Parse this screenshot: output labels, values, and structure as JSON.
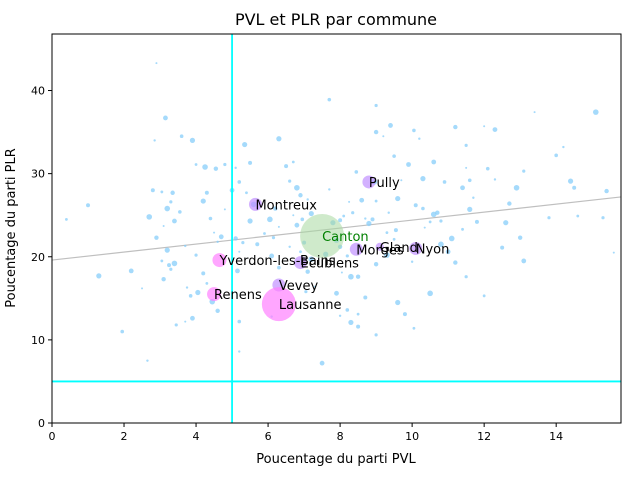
{
  "chart_data": {
    "type": "scatter",
    "title": "PVL et PLR par commune",
    "xlabel": "Poucentage du parti PVL",
    "ylabel": "Poucentage du parti PLR",
    "xlim": [
      0,
      15.8
    ],
    "ylim": [
      0,
      46.8
    ],
    "xticks": [
      0,
      2,
      4,
      6,
      8,
      10,
      12,
      14
    ],
    "yticks": [
      0,
      10,
      20,
      30,
      40
    ],
    "grid": false,
    "regression_line": {
      "x": [
        0,
        15.8
      ],
      "y": [
        19.6,
        27.2
      ],
      "color": "#bfbfbf"
    },
    "threshold_lines": {
      "x": 5,
      "y": 5,
      "color": "#00ffff"
    },
    "colors": {
      "small": "#87cefa",
      "medium": "#c090ff",
      "large": "#ff80ff",
      "canton": "#a8d8a0"
    },
    "labeled_points": [
      {
        "label": "Pully",
        "x": 8.8,
        "y": 29.0,
        "size": "medium"
      },
      {
        "label": "Montreux",
        "x": 5.65,
        "y": 26.3,
        "size": "medium"
      },
      {
        "label": "Canton",
        "x": 7.5,
        "y": 22.5,
        "size": "canton",
        "label_color": "#008000"
      },
      {
        "label": "Morges",
        "x": 8.45,
        "y": 20.9,
        "size": "medium"
      },
      {
        "label": "Gland",
        "x": 9.1,
        "y": 21.2,
        "size": "small"
      },
      {
        "label": "Nyon",
        "x": 10.1,
        "y": 21.0,
        "size": "medium"
      },
      {
        "label": "Yverdon-les-Bains",
        "x": 4.65,
        "y": 19.6,
        "size": "large"
      },
      {
        "label": "Ecublens",
        "x": 6.9,
        "y": 19.3,
        "size": "medium"
      },
      {
        "label": "Vevey",
        "x": 6.3,
        "y": 16.6,
        "size": "medium"
      },
      {
        "label": "Renens",
        "x": 4.5,
        "y": 15.5,
        "size": "large"
      },
      {
        "label": "Lausanne",
        "x": 6.3,
        "y": 14.3,
        "size": "large"
      }
    ],
    "points": [
      [
        2.9,
        43.3
      ],
      [
        3.15,
        36.7
      ],
      [
        3.6,
        34.5
      ],
      [
        2.85,
        34.0
      ],
      [
        3.9,
        34.0
      ],
      [
        2.8,
        28.0
      ],
      [
        3.05,
        27.8
      ],
      [
        3.2,
        25.8
      ],
      [
        3.35,
        27.7
      ],
      [
        3.3,
        26.6
      ],
      [
        3.1,
        23.7
      ],
      [
        3.4,
        24.3
      ],
      [
        3.55,
        25.4
      ],
      [
        3.7,
        21.3
      ],
      [
        3.2,
        20.8
      ],
      [
        3.25,
        19.0
      ],
      [
        3.05,
        19.5
      ],
      [
        3.4,
        19.2
      ],
      [
        3.1,
        17.3
      ],
      [
        3.3,
        18.5
      ],
      [
        2.5,
        16.2
      ],
      [
        2.2,
        18.3
      ],
      [
        1.95,
        11.0
      ],
      [
        2.65,
        7.5
      ],
      [
        1.3,
        17.7
      ],
      [
        1.0,
        26.2
      ],
      [
        0.4,
        24.5
      ],
      [
        2.7,
        24.8
      ],
      [
        2.9,
        22.3
      ],
      [
        3.45,
        11.8
      ],
      [
        3.7,
        12.2
      ],
      [
        3.9,
        12.6
      ],
      [
        3.85,
        15.3
      ],
      [
        3.75,
        16.3
      ],
      [
        4.05,
        15.7
      ],
      [
        4.2,
        18.0
      ],
      [
        4.3,
        16.8
      ],
      [
        4.45,
        14.6
      ],
      [
        4.6,
        13.5
      ],
      [
        4.0,
        20.2
      ],
      [
        4.5,
        22.9
      ],
      [
        4.7,
        22.4
      ],
      [
        4.4,
        24.6
      ],
      [
        4.6,
        21.8
      ],
      [
        4.2,
        26.7
      ],
      [
        4.3,
        27.7
      ],
      [
        4.0,
        31.1
      ],
      [
        4.25,
        30.8
      ],
      [
        4.55,
        30.6
      ],
      [
        4.8,
        31.1
      ],
      [
        4.8,
        25.7
      ],
      [
        5.0,
        28.0
      ],
      [
        5.2,
        29.0
      ],
      [
        5.1,
        30.7
      ],
      [
        5.35,
        33.5
      ],
      [
        5.5,
        31.3
      ],
      [
        5.4,
        27.7
      ],
      [
        5.6,
        26.3
      ],
      [
        5.1,
        22.2
      ],
      [
        5.3,
        21.7
      ],
      [
        5.2,
        20.6
      ],
      [
        5.15,
        18.3
      ],
      [
        5.2,
        12.2
      ],
      [
        5.2,
        8.6
      ],
      [
        5.5,
        24.3
      ],
      [
        5.7,
        21.5
      ],
      [
        5.9,
        22.8
      ],
      [
        6.05,
        24.5
      ],
      [
        6.2,
        25.8
      ],
      [
        6.15,
        22.3
      ],
      [
        6.3,
        23.6
      ],
      [
        6.1,
        20.1
      ],
      [
        6.3,
        18.7
      ],
      [
        6.1,
        12.8
      ],
      [
        6.3,
        34.2
      ],
      [
        6.5,
        30.9
      ],
      [
        6.7,
        31.4
      ],
      [
        6.8,
        28.3
      ],
      [
        6.9,
        27.4
      ],
      [
        6.6,
        29.1
      ],
      [
        6.7,
        25.0
      ],
      [
        6.8,
        23.8
      ],
      [
        6.95,
        24.5
      ],
      [
        7.1,
        26.9
      ],
      [
        7.2,
        25.2
      ],
      [
        7.0,
        21.7
      ],
      [
        6.9,
        20.6
      ],
      [
        7.2,
        19.7
      ],
      [
        7.1,
        18.2
      ],
      [
        7.05,
        15.8
      ],
      [
        7.3,
        16.4
      ],
      [
        7.5,
        7.2
      ],
      [
        7.7,
        38.9
      ],
      [
        7.7,
        28.1
      ],
      [
        7.8,
        24.1
      ],
      [
        8.0,
        24.4
      ],
      [
        8.1,
        24.9
      ],
      [
        7.9,
        22.0
      ],
      [
        8.0,
        21.2
      ],
      [
        8.2,
        20.1
      ],
      [
        8.05,
        18.1
      ],
      [
        7.9,
        15.6
      ],
      [
        8.2,
        13.6
      ],
      [
        8.0,
        12.9
      ],
      [
        8.3,
        12.1
      ],
      [
        8.5,
        11.6
      ],
      [
        8.5,
        13.1
      ],
      [
        8.3,
        17.6
      ],
      [
        8.5,
        17.6
      ],
      [
        8.35,
        25.3
      ],
      [
        8.25,
        26.6
      ],
      [
        8.6,
        26.8
      ],
      [
        8.45,
        30.2
      ],
      [
        8.7,
        24.6
      ],
      [
        8.8,
        24.0
      ],
      [
        8.9,
        24.5
      ],
      [
        9.0,
        26.7
      ],
      [
        8.95,
        29.0
      ],
      [
        9.0,
        35.0
      ],
      [
        9.0,
        38.2
      ],
      [
        9.2,
        34.5
      ],
      [
        9.4,
        35.8
      ],
      [
        9.5,
        32.1
      ],
      [
        9.35,
        25.3
      ],
      [
        9.6,
        27.0
      ],
      [
        9.55,
        23.2
      ],
      [
        9.5,
        22.1
      ],
      [
        9.3,
        20.2
      ],
      [
        9.0,
        19.1
      ],
      [
        9.0,
        10.6
      ],
      [
        9.7,
        29.2
      ],
      [
        9.9,
        31.1
      ],
      [
        10.05,
        35.2
      ],
      [
        10.2,
        34.2
      ],
      [
        10.3,
        29.4
      ],
      [
        10.1,
        26.2
      ],
      [
        10.5,
        24.2
      ],
      [
        10.6,
        25.1
      ],
      [
        10.7,
        25.3
      ],
      [
        10.8,
        24.3
      ],
      [
        10.35,
        23.5
      ],
      [
        10.6,
        31.4
      ],
      [
        10.9,
        29.0
      ],
      [
        10.0,
        19.4
      ],
      [
        9.6,
        14.5
      ],
      [
        9.8,
        13.1
      ],
      [
        10.05,
        11.4
      ],
      [
        10.5,
        15.6
      ],
      [
        11.2,
        35.6
      ],
      [
        11.5,
        33.4
      ],
      [
        11.5,
        30.7
      ],
      [
        11.4,
        28.3
      ],
      [
        11.6,
        29.2
      ],
      [
        11.7,
        27.1
      ],
      [
        11.6,
        25.7
      ],
      [
        11.8,
        24.2
      ],
      [
        11.4,
        23.3
      ],
      [
        11.1,
        22.2
      ],
      [
        11.2,
        19.3
      ],
      [
        11.5,
        17.6
      ],
      [
        12.0,
        35.7
      ],
      [
        12.3,
        35.3
      ],
      [
        12.1,
        30.6
      ],
      [
        12.3,
        29.3
      ],
      [
        12.6,
        24.1
      ],
      [
        12.5,
        21.1
      ],
      [
        12.0,
        15.3
      ],
      [
        12.9,
        28.3
      ],
      [
        13.0,
        22.3
      ],
      [
        13.1,
        30.3
      ],
      [
        13.4,
        37.4
      ],
      [
        13.1,
        19.5
      ],
      [
        14.0,
        32.2
      ],
      [
        14.2,
        33.2
      ],
      [
        14.4,
        29.1
      ],
      [
        14.5,
        28.3
      ],
      [
        14.6,
        24.9
      ],
      [
        15.1,
        37.4
      ],
      [
        15.4,
        27.9
      ],
      [
        15.3,
        24.7
      ],
      [
        15.6,
        20.5
      ],
      [
        11.0,
        20.6
      ],
      [
        10.3,
        25.8
      ],
      [
        6.6,
        21.2
      ],
      [
        7.6,
        20.3
      ],
      [
        8.7,
        15.1
      ],
      [
        9.3,
        22.9
      ],
      [
        10.8,
        21.5
      ],
      [
        12.7,
        26.4
      ],
      [
        13.8,
        24.7
      ]
    ]
  }
}
